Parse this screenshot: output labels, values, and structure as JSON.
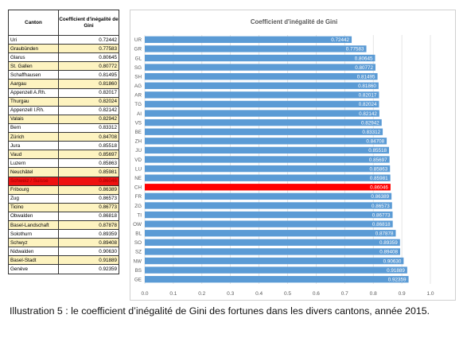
{
  "table": {
    "header_canton": "Canton",
    "header_value": "Coefficient d'inégalité de Gini",
    "rows": [
      {
        "name": "Uri",
        "value": "0.72442"
      },
      {
        "name": "Graubünden",
        "value": "0.77583"
      },
      {
        "name": "Glarus",
        "value": "0.80645"
      },
      {
        "name": "St. Gallen",
        "value": "0.80772"
      },
      {
        "name": "Schaffhausen",
        "value": "0.81495"
      },
      {
        "name": "Aargau",
        "value": "0.81860"
      },
      {
        "name": "Appenzell A.Rh.",
        "value": "0.82017"
      },
      {
        "name": "Thurgau",
        "value": "0.82024"
      },
      {
        "name": "Appenzell I.Rh.",
        "value": "0.82142"
      },
      {
        "name": "Valais",
        "value": "0.82942"
      },
      {
        "name": "Bern",
        "value": "0.83312"
      },
      {
        "name": "Zürich",
        "value": "0.84708"
      },
      {
        "name": "Jura",
        "value": "0.85518"
      },
      {
        "name": "Vaud",
        "value": "0.85697"
      },
      {
        "name": "Luzern",
        "value": "0.85863"
      },
      {
        "name": "Neuchâtel",
        "value": "0.85981"
      },
      {
        "name": "Schweiz / Suisse",
        "value": "0.86046"
      },
      {
        "name": "Fribourg",
        "value": "0.86389"
      },
      {
        "name": "Zug",
        "value": "0.86573"
      },
      {
        "name": "Ticino",
        "value": "0.86773"
      },
      {
        "name": "Obwalden",
        "value": "0.86818"
      },
      {
        "name": "Basel-Landschaft",
        "value": "0.87878"
      },
      {
        "name": "Solothurn",
        "value": "0.89359"
      },
      {
        "name": "Schwyz",
        "value": "0.89408"
      },
      {
        "name": "Nidwalden",
        "value": "0.90630"
      },
      {
        "name": "Basel-Stadt",
        "value": "0.91889"
      },
      {
        "name": "Genève",
        "value": "0.92359"
      }
    ],
    "highlight_row": 16,
    "colors": {
      "odd": "#ffffff",
      "even": "#fdf3c0",
      "highlight": "#ee1111"
    }
  },
  "chart_data": {
    "type": "bar",
    "orientation": "horizontal",
    "title": "Coefficient d'inégalité de Gini",
    "categories": [
      "UR",
      "GR",
      "GL",
      "SG",
      "SH",
      "AG",
      "AR",
      "TG",
      "AI",
      "VS",
      "BE",
      "ZH",
      "JU",
      "VD",
      "LU",
      "NE",
      "CH",
      "FR",
      "ZG",
      "TI",
      "OW",
      "BL",
      "SO",
      "SZ",
      "NW",
      "BS",
      "GE"
    ],
    "values": [
      0.72442,
      0.77583,
      0.80645,
      0.80772,
      0.81495,
      0.8186,
      0.82017,
      0.82024,
      0.82142,
      0.82942,
      0.83312,
      0.84708,
      0.85518,
      0.85697,
      0.85863,
      0.85981,
      0.86046,
      0.86389,
      0.86573,
      0.86773,
      0.86818,
      0.87878,
      0.89359,
      0.89408,
      0.9063,
      0.91889,
      0.92359
    ],
    "value_labels": [
      "0.72442",
      "0.77583",
      "0.80645",
      "0.80772",
      "0.81495",
      "0.81860",
      "0.82017",
      "0.82024",
      "0.82142",
      "0.82942",
      "0.83312",
      "0.84708",
      "0.85518",
      "0.85697",
      "0.85863",
      "0.85981",
      "0.86046",
      "0.86389",
      "0.86573",
      "0.86773",
      "0.86818",
      "0.87878",
      "0.89359",
      "0.89408",
      "0.90630",
      "0.91889",
      "0.92359"
    ],
    "xlim": [
      0,
      1
    ],
    "xticks": [
      "0.0",
      "0.1",
      "0.2",
      "0.3",
      "0.4",
      "0.5",
      "0.6",
      "0.7",
      "0.8",
      "0.9",
      "1.0"
    ],
    "grid": true,
    "highlight_index": 16,
    "colors": {
      "bar": "#5b9bd5",
      "highlight": "#ff0000",
      "grid": "#d9d9d9",
      "tick": "#595959",
      "label": "#ffffff"
    }
  },
  "caption": "Illustration 5 : le coefficient d’inégalité de Gini des fortunes dans les divers cantons, année 2015."
}
